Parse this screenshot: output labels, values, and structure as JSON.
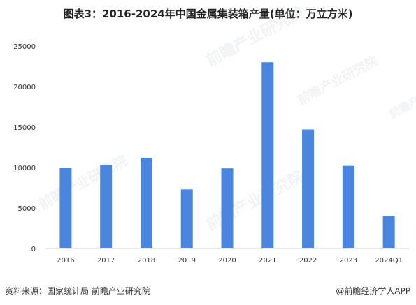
{
  "chart_data": {
    "type": "bar",
    "title": "图表3：2016-2024年中国金属集装箱产量(单位：万立方米)",
    "categories": [
      "2016",
      "2017",
      "2018",
      "2019",
      "2020",
      "2021",
      "2022",
      "2023",
      "2024Q1"
    ],
    "values": [
      10000,
      10300,
      11200,
      7300,
      9900,
      23000,
      14700,
      10200,
      4000
    ],
    "xlabel": "",
    "ylabel": "",
    "ylim": [
      0,
      25000
    ],
    "yticks": [
      0,
      5000,
      10000,
      15000,
      20000,
      25000
    ],
    "grid": false,
    "legend": "none",
    "bar_color": "#4a86e0"
  },
  "footer": {
    "source": "资料来源：国家统计局 前瞻产业研究院",
    "app": "@前瞻经济学人APP"
  },
  "watermark_text": "前瞻产业研究院"
}
